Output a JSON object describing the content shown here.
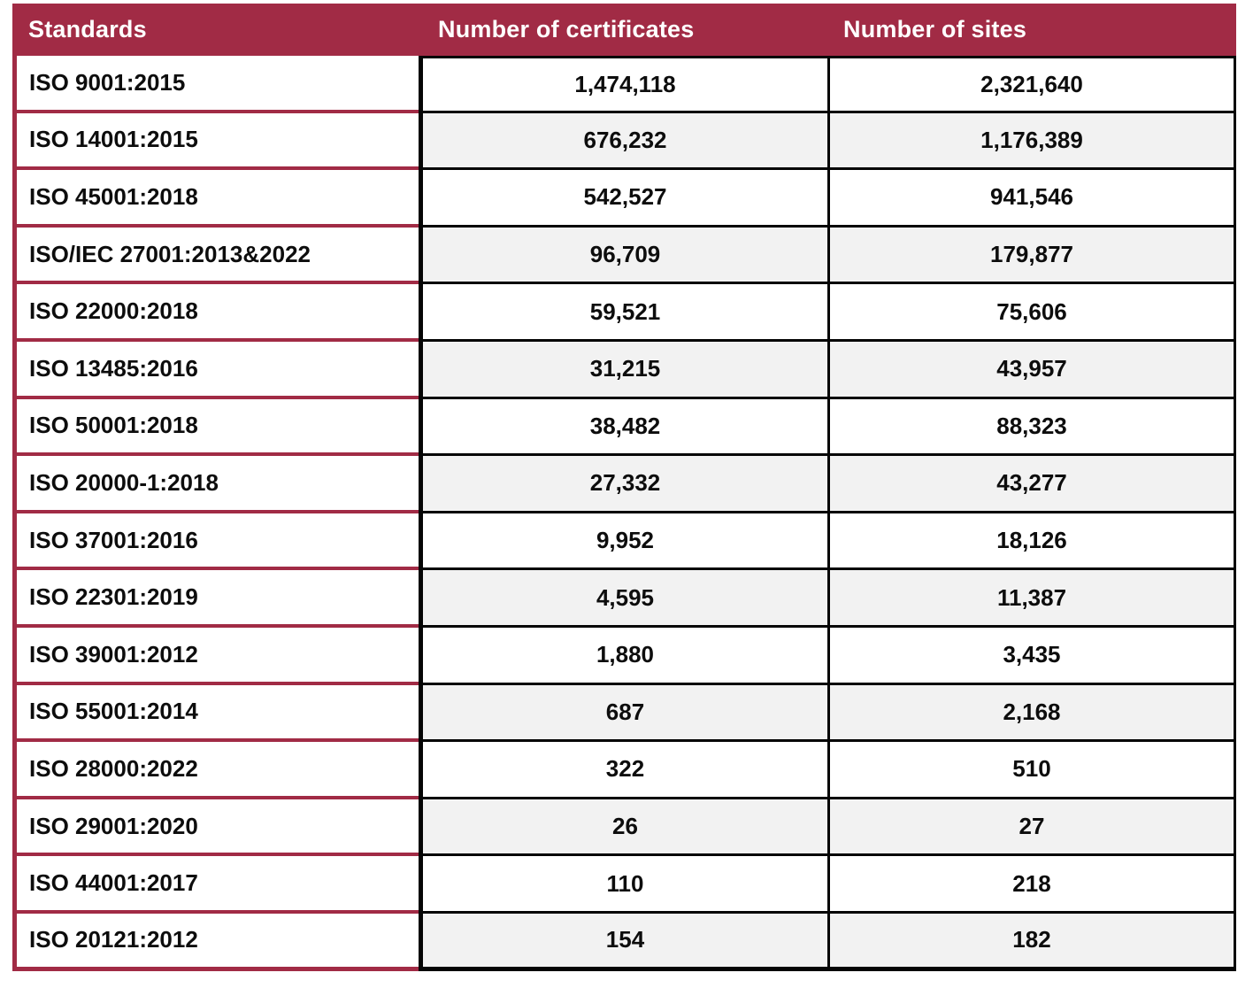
{
  "colors": {
    "header_bg": "#a12b45",
    "accent_border": "#a12b45",
    "grid_border": "#050505",
    "alt_row_bg": "#f2f2f2",
    "header_text": "#ffffff",
    "body_text": "#0d0d0d"
  },
  "chart_data": {
    "type": "table",
    "title": "",
    "columns": [
      "Standards",
      "Number of certificates",
      "Number of sites"
    ],
    "rows": [
      {
        "standard": "ISO 9001:2015",
        "certificates": "1,474,118",
        "sites": "2,321,640"
      },
      {
        "standard": "ISO 14001:2015",
        "certificates": "676,232",
        "sites": "1,176,389"
      },
      {
        "standard": "ISO 45001:2018",
        "certificates": "542,527",
        "sites": "941,546"
      },
      {
        "standard": "ISO/IEC 27001:2013&2022",
        "certificates": "96,709",
        "sites": "179,877"
      },
      {
        "standard": "ISO 22000:2018",
        "certificates": "59,521",
        "sites": "75,606"
      },
      {
        "standard": "ISO 13485:2016",
        "certificates": "31,215",
        "sites": "43,957"
      },
      {
        "standard": "ISO 50001:2018",
        "certificates": "38,482",
        "sites": "88,323"
      },
      {
        "standard": "ISO 20000-1:2018",
        "certificates": "27,332",
        "sites": "43,277"
      },
      {
        "standard": "ISO 37001:2016",
        "certificates": "9,952",
        "sites": "18,126"
      },
      {
        "standard": "ISO 22301:2019",
        "certificates": "4,595",
        "sites": "11,387"
      },
      {
        "standard": "ISO 39001:2012",
        "certificates": "1,880",
        "sites": "3,435"
      },
      {
        "standard": "ISO 55001:2014",
        "certificates": "687",
        "sites": "2,168"
      },
      {
        "standard": "ISO 28000:2022",
        "certificates": "322",
        "sites": "510"
      },
      {
        "standard": "ISO 29001:2020",
        "certificates": "26",
        "sites": "27"
      },
      {
        "standard": "ISO 44001:2017",
        "certificates": "110",
        "sites": "218"
      },
      {
        "standard": "ISO 20121:2012",
        "certificates": "154",
        "sites": "182"
      }
    ]
  }
}
